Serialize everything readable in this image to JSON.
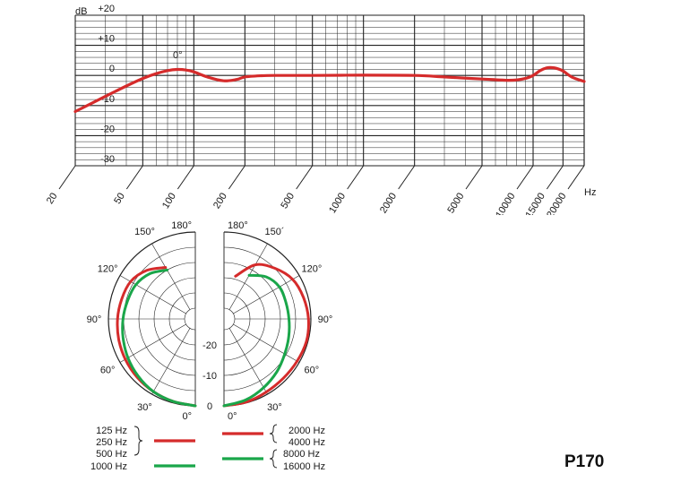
{
  "model": "P170",
  "colors": {
    "red": "#d52b2b",
    "green": "#1aa64a",
    "grid": "#222222"
  },
  "chart_data": [
    {
      "type": "line",
      "title": "",
      "xlabel": "Hz",
      "ylabel": "dB",
      "xscale": "log",
      "xlim": [
        20,
        20000
      ],
      "ylim": [
        -30,
        20
      ],
      "grid": true,
      "x_ticks": [
        "20",
        "50",
        "100",
        "200",
        "500",
        "1000",
        "2000",
        "5000",
        "10000",
        "15000",
        "20000"
      ],
      "y_ticks": [
        "+20",
        "+10",
        "0",
        "-10",
        "-20",
        "-30"
      ],
      "annotations": [
        "0°"
      ],
      "series": [
        {
          "color": "#d52b2b",
          "x": [
            20,
            30,
            40,
            50,
            60,
            70,
            80,
            90,
            100,
            120,
            150,
            180,
            200,
            250,
            300,
            500,
            1000,
            2000,
            3000,
            5000,
            7000,
            8000,
            9000,
            10000,
            11000,
            12000,
            13000,
            14000,
            15000,
            17000,
            20000
          ],
          "y": [
            -12,
            -7,
            -3.5,
            -1,
            0.6,
            1.6,
            2,
            1.8,
            1.2,
            -0.5,
            -1.8,
            -1.3,
            -0.5,
            -0.1,
            0,
            0,
            0.1,
            0,
            -0.5,
            -1.2,
            -1.6,
            -1.5,
            -1,
            0,
            1.6,
            2.5,
            2.6,
            2.2,
            1.5,
            -0.6,
            -2
          ]
        }
      ]
    },
    {
      "type": "polar",
      "title": "",
      "angle_labels_left": [
        "180°",
        "150°",
        "120°",
        "90°",
        "60°",
        "30°",
        "0°"
      ],
      "angle_labels_right": [
        "180°",
        "150´",
        "120°",
        "90°",
        "60°",
        "30°",
        "0°"
      ],
      "radial_labels": [
        "-20",
        "-10",
        "0"
      ],
      "series": [
        {
          "name": "125 Hz, 250 Hz, 500 Hz",
          "color": "#d52b2b",
          "side": "left",
          "angles_deg": [
            0,
            15,
            30,
            45,
            60,
            75,
            90,
            105,
            120,
            135,
            150
          ],
          "db": [
            0,
            -0.5,
            -1,
            -1.5,
            -2,
            -2.5,
            -3,
            -3.5,
            -4,
            -6,
            -9
          ]
        },
        {
          "name": "1000 Hz",
          "color": "#1aa64a",
          "side": "left",
          "angles_deg": [
            0,
            15,
            30,
            45,
            60,
            75,
            90,
            105,
            120,
            135,
            150
          ],
          "db": [
            0,
            -0.5,
            -1,
            -2,
            -3,
            -4,
            -4.8,
            -5.5,
            -6,
            -7.5,
            -10
          ]
        },
        {
          "name": "2000 Hz, 4000 Hz",
          "color": "#d52b2b",
          "side": "right",
          "angles_deg": [
            0,
            15,
            30,
            45,
            60,
            75,
            90,
            105,
            120,
            135,
            150,
            165
          ],
          "db": [
            0,
            -0.3,
            -0.8,
            -1,
            -0.8,
            -0.5,
            -0.8,
            -1.5,
            -2.5,
            -5,
            -8,
            -14
          ]
        },
        {
          "name": "8000 Hz, 16000 Hz",
          "color": "#1aa64a",
          "side": "right",
          "angles_deg": [
            0,
            15,
            30,
            45,
            60,
            75,
            90,
            105,
            120,
            135,
            150
          ],
          "db": [
            0,
            -1,
            -2.5,
            -4,
            -5.5,
            -6.5,
            -7.2,
            -7.5,
            -7.5,
            -9,
            -12
          ]
        }
      ]
    }
  ],
  "legend": {
    "left_freqs": [
      "125 Hz",
      "250 Hz",
      "500 Hz",
      "1000 Hz"
    ],
    "right_freqs": [
      "2000 Hz",
      "4000 Hz",
      "8000 Hz",
      "16000 Hz"
    ]
  }
}
